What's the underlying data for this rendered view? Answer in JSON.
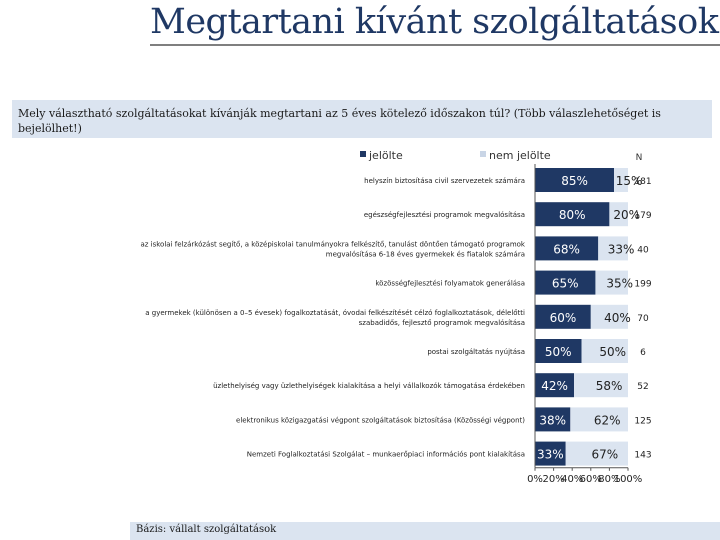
{
  "slide": {
    "title": "Megtartani kívánt szolgáltatások",
    "question": "Mely választható szolgáltatásokat kívánják megtartani az 5 éves kötelező időszakon túl? (Több válaszlehetőséget is bejelölhet!)",
    "basis": "Bázis: vállalt szolgáltatások"
  },
  "chart_data": {
    "type": "bar",
    "orientation": "horizontal",
    "stacked": "percent",
    "n_header": "N",
    "legend_position": "top",
    "xlim": [
      0,
      100
    ],
    "x_ticks": [
      "0%",
      "20%",
      "40%",
      "60%",
      "80%",
      "100%"
    ],
    "categories": [
      "helyszín biztosítása civil szervezetek számára",
      "egészségfejlesztési programok megvalósítása",
      "az iskolai felzárkózást segítő, a középiskolai tanulmányokra felkészítő, tanulást döntően támogató programok megvalósítása 6-18 éves gyermekek és fiatalok számára",
      "közösségfejlesztési folyamatok generálása",
      "a gyermekek (különösen a 0–5 évesek) fogalkoztatását, óvodai felkészítését célzó foglalkoztatások, délelőtti szabadidős, fejlesztő programok megvalósítása",
      "postai szolgáltatás nyújtása",
      "üzlethelyiség vagy üzlethelyiségek kialakítása a helyi vállalkozók támogatása érdekében",
      "elektronikus közigazgatási végpont szolgáltatások biztosítása (Közösségi végpont)",
      "Nemzeti Foglalkoztatási Szolgálat – munkaerőpiaci információs pont kialakítása"
    ],
    "series": [
      {
        "name": "jelölte",
        "color": "#1f3864",
        "values": [
          85,
          80,
          68,
          65,
          60,
          50,
          42,
          38,
          33
        ],
        "labels": [
          "85%",
          "80%",
          "68%",
          "65%",
          "60%",
          "50%",
          "42%",
          "38%",
          "33%"
        ]
      },
      {
        "name": "nem jelölte",
        "color": "#dbe4f0",
        "values": [
          15,
          20,
          33,
          35,
          40,
          50,
          58,
          62,
          67
        ],
        "labels": [
          "15%",
          "20%",
          "33%",
          "35%",
          "40%",
          "50%",
          "58%",
          "62%",
          "67%"
        ]
      }
    ],
    "n": [
      "181",
      "179",
      "40",
      "199",
      "70",
      "6",
      "52",
      "125",
      "143"
    ]
  }
}
